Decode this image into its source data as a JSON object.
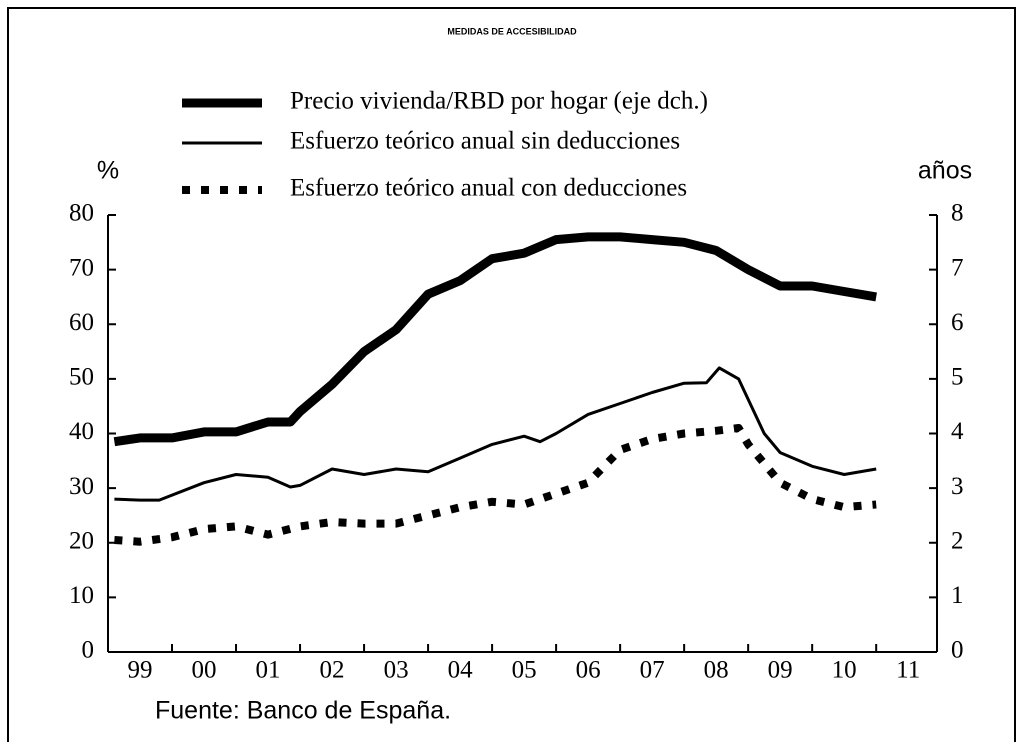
{
  "chart_data": {
    "type": "line",
    "title": "MEDIDAS DE ACCESIBILIDAD",
    "ylabel": "%",
    "y2label": "años",
    "source": "Fuente: Banco de España.",
    "xlim": [
      1999,
      2011.95
    ],
    "xticks": [
      {
        "value": 1999.5,
        "label": "99"
      },
      {
        "value": 2000.5,
        "label": "00"
      },
      {
        "value": 2001.5,
        "label": "01"
      },
      {
        "value": 2002.5,
        "label": "02"
      },
      {
        "value": 2003.5,
        "label": "03"
      },
      {
        "value": 2004.5,
        "label": "04"
      },
      {
        "value": 2005.5,
        "label": "05"
      },
      {
        "value": 2006.5,
        "label": "06"
      },
      {
        "value": 2007.5,
        "label": "07"
      },
      {
        "value": 2008.5,
        "label": "08"
      },
      {
        "value": 2009.5,
        "label": "09"
      },
      {
        "value": 2010.5,
        "label": "10"
      },
      {
        "value": 2011.5,
        "label": "11"
      }
    ],
    "xminor": [
      2000,
      2001,
      2002,
      2003,
      2004,
      2005,
      2006,
      2007,
      2008,
      2009,
      2010,
      2011
    ],
    "ylim": [
      0,
      80
    ],
    "yticks": [
      0,
      10,
      20,
      30,
      40,
      50,
      60,
      70,
      80
    ],
    "y2lim": [
      0,
      8
    ],
    "y2ticks": [
      0,
      1,
      2,
      3,
      4,
      5,
      6,
      7,
      8
    ],
    "series": [
      {
        "name": "Precio vivienda/RBD por hogar (eje dch.)",
        "color": "#000000",
        "linestyle": "thick",
        "axis": "y2",
        "x": [
          1999.1,
          1999.5,
          2000,
          2000.5,
          2001,
          2001.5,
          2001.85,
          2002,
          2002.5,
          2003,
          2003.5,
          2004,
          2004.5,
          2005,
          2005.5,
          2006,
          2006.5,
          2007,
          2007.5,
          2008,
          2008.5,
          2009,
          2009.5,
          2010,
          2010.5,
          2011
        ],
        "values": [
          3.85,
          3.92,
          3.92,
          4.03,
          4.03,
          4.21,
          4.21,
          4.4,
          4.9,
          5.5,
          5.9,
          6.55,
          6.8,
          7.2,
          7.3,
          7.55,
          7.6,
          7.6,
          7.55,
          7.5,
          7.35,
          7.0,
          6.7,
          6.7,
          6.6,
          6.5
        ]
      },
      {
        "name": "Esfuerzo teórico anual sin deducciones",
        "color": "#000000",
        "linestyle": "solid",
        "x": [
          1999.1,
          1999.5,
          1999.8,
          2000.5,
          2001,
          2001.5,
          2001.85,
          2002,
          2002.5,
          2003,
          2003.5,
          2004,
          2004.5,
          2005,
          2005.5,
          2005.75,
          2006,
          2006.5,
          2007,
          2007.5,
          2008,
          2008.35,
          2008.55,
          2008.85,
          2009.05,
          2009.25,
          2009.5,
          2010,
          2010.5,
          2011
        ],
        "values": [
          28,
          27.8,
          27.8,
          31,
          32.5,
          32,
          30.2,
          30.5,
          33.5,
          32.5,
          33.5,
          33,
          35.5,
          38,
          39.5,
          38.5,
          40,
          43.5,
          45.5,
          47.5,
          49.2,
          49.3,
          52,
          50,
          45,
          40,
          36.5,
          34,
          32.5,
          33.5
        ]
      },
      {
        "name": "Esfuerzo teórico anual con deducciones",
        "color": "#000000",
        "linestyle": "dotted",
        "x": [
          1999.1,
          1999.5,
          2000,
          2000.5,
          2001,
          2001.5,
          2002,
          2002.5,
          2003,
          2003.5,
          2004,
          2004.5,
          2005,
          2005.5,
          2006,
          2006.5,
          2007,
          2007.5,
          2008,
          2008.5,
          2008.85,
          2009,
          2009.5,
          2010,
          2010.5,
          2011
        ],
        "values": [
          20.5,
          20.2,
          21,
          22.5,
          23,
          21.5,
          23,
          23.8,
          23.5,
          23.5,
          25,
          26.5,
          27.5,
          27,
          29,
          31,
          37,
          39,
          40,
          40.5,
          41,
          38,
          31,
          28,
          26.5,
          27
        ]
      }
    ]
  }
}
